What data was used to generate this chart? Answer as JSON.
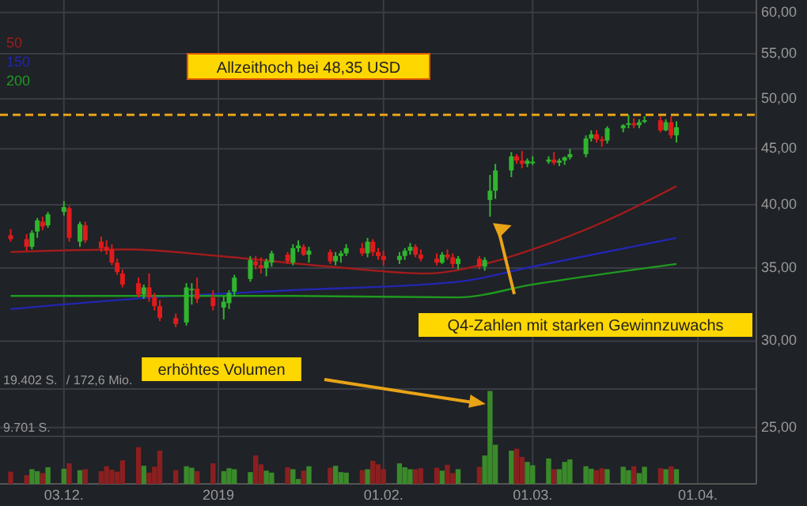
{
  "chart_data": {
    "type": "candlestick",
    "x": [
      "2018-11-23",
      "2018-11-26",
      "2018-11-27",
      "2018-11-28",
      "2018-11-29",
      "2018-11-30",
      "2018-12-03",
      "2018-12-04",
      "2018-12-06",
      "2018-12-07",
      "2018-12-10",
      "2018-12-11",
      "2018-12-12",
      "2018-12-13",
      "2018-12-14",
      "2018-12-17",
      "2018-12-18",
      "2018-12-19",
      "2018-12-20",
      "2018-12-21",
      "2018-12-24",
      "2018-12-26",
      "2018-12-27",
      "2018-12-28",
      "2018-12-31",
      "2019-01-02",
      "2019-01-03",
      "2019-01-04",
      "2019-01-07",
      "2019-01-08",
      "2019-01-09",
      "2019-01-10",
      "2019-01-11",
      "2019-01-14",
      "2019-01-15",
      "2019-01-16",
      "2019-01-17",
      "2019-01-18",
      "2019-01-22",
      "2019-01-23",
      "2019-01-24",
      "2019-01-25",
      "2019-01-28",
      "2019-01-29",
      "2019-01-30",
      "2019-01-31",
      "2019-02-01",
      "2019-02-04",
      "2019-02-05",
      "2019-02-06",
      "2019-02-07",
      "2019-02-08",
      "2019-02-11",
      "2019-02-12",
      "2019-02-13",
      "2019-02-14",
      "2019-02-15",
      "2019-02-19",
      "2019-02-20",
      "2019-02-21",
      "2019-02-22",
      "2019-02-25",
      "2019-02-26",
      "2019-02-27",
      "2019-02-28",
      "2019-03-01",
      "2019-03-04",
      "2019-03-05",
      "2019-03-06",
      "2019-03-07",
      "2019-03-08",
      "2019-03-11",
      "2019-03-12",
      "2019-03-13",
      "2019-03-14",
      "2019-03-15",
      "2019-03-18",
      "2019-03-19",
      "2019-03-20",
      "2019-03-21",
      "2019-03-22",
      "2019-03-25",
      "2019-03-26",
      "2019-03-27",
      "2019-03-28"
    ],
    "ohlc": [
      [
        37.5,
        38.0,
        37.0,
        37.2
      ],
      [
        37.2,
        37.6,
        36.3,
        36.6
      ],
      [
        36.6,
        37.9,
        36.4,
        37.7
      ],
      [
        37.8,
        38.9,
        37.3,
        38.7
      ],
      [
        38.6,
        39.0,
        37.9,
        38.2
      ],
      [
        38.3,
        39.4,
        38.1,
        39.2
      ],
      [
        39.4,
        40.3,
        39.1,
        39.8
      ],
      [
        39.7,
        39.9,
        37.0,
        37.3
      ],
      [
        37.0,
        38.6,
        36.6,
        38.4
      ],
      [
        38.3,
        38.6,
        36.9,
        37.1
      ],
      [
        37.0,
        37.4,
        36.2,
        36.5
      ],
      [
        36.6,
        37.1,
        36.0,
        36.3
      ],
      [
        36.4,
        36.8,
        35.2,
        35.4
      ],
      [
        35.4,
        35.7,
        34.5,
        34.7
      ],
      [
        34.6,
        34.9,
        33.6,
        33.8
      ],
      [
        33.9,
        34.3,
        32.9,
        33.1
      ],
      [
        33.1,
        33.8,
        32.8,
        33.6
      ],
      [
        33.6,
        34.6,
        32.6,
        32.9
      ],
      [
        32.9,
        33.2,
        32.0,
        32.3
      ],
      [
        32.3,
        32.7,
        31.3,
        31.5
      ],
      [
        31.5,
        31.8,
        30.9,
        31.1
      ],
      [
        31.2,
        33.9,
        31.0,
        33.6
      ],
      [
        33.4,
        33.9,
        32.4,
        33.5
      ],
      [
        33.5,
        34.3,
        32.5,
        32.8
      ],
      [
        32.9,
        33.4,
        32.0,
        32.3
      ],
      [
        32.2,
        33.0,
        31.4,
        32.6
      ],
      [
        32.5,
        33.4,
        32.1,
        33.2
      ],
      [
        33.3,
        34.5,
        33.0,
        34.3
      ],
      [
        34.2,
        35.9,
        34.0,
        35.6
      ],
      [
        35.5,
        35.9,
        34.9,
        35.2
      ],
      [
        35.2,
        35.8,
        34.6,
        35.0
      ],
      [
        35.0,
        35.7,
        34.4,
        35.5
      ],
      [
        35.4,
        36.3,
        35.1,
        36.1
      ],
      [
        36.0,
        36.2,
        35.3,
        35.5
      ],
      [
        35.4,
        36.8,
        35.2,
        36.5
      ],
      [
        36.5,
        37.1,
        36.2,
        36.7
      ],
      [
        36.6,
        36.8,
        35.9,
        36.0
      ],
      [
        36.0,
        36.6,
        35.4,
        36.3
      ],
      [
        36.2,
        36.4,
        35.3,
        35.5
      ],
      [
        35.5,
        36.2,
        35.2,
        35.9
      ],
      [
        35.9,
        36.3,
        35.4,
        36.1
      ],
      [
        36.1,
        36.8,
        35.9,
        36.5
      ],
      [
        36.5,
        36.9,
        35.9,
        36.1
      ],
      [
        36.1,
        37.3,
        35.8,
        37.0
      ],
      [
        37.0,
        37.2,
        35.9,
        36.2
      ],
      [
        36.2,
        36.5,
        35.6,
        35.9
      ],
      [
        35.9,
        36.3,
        35.2,
        35.6
      ],
      [
        35.6,
        36.2,
        35.3,
        35.9
      ],
      [
        35.9,
        36.5,
        35.6,
        36.3
      ],
      [
        36.3,
        36.9,
        36.0,
        36.6
      ],
      [
        36.6,
        36.8,
        35.8,
        36.0
      ],
      [
        36.0,
        36.4,
        35.5,
        35.7
      ],
      [
        35.7,
        36.1,
        35.2,
        35.4
      ],
      [
        35.4,
        36.2,
        35.3,
        36.0
      ],
      [
        36.0,
        36.4,
        35.6,
        35.8
      ],
      [
        35.8,
        36.1,
        35.0,
        35.3
      ],
      [
        35.3,
        35.9,
        34.9,
        35.7
      ],
      [
        35.7,
        35.9,
        34.9,
        35.1
      ],
      [
        35.1,
        35.8,
        34.8,
        35.6
      ],
      [
        40.4,
        42.6,
        39.0,
        41.2
      ],
      [
        41.2,
        43.6,
        40.5,
        43.0
      ],
      [
        43.0,
        44.7,
        42.4,
        44.3
      ],
      [
        44.3,
        44.5,
        43.6,
        43.9
      ],
      [
        43.9,
        44.8,
        43.2,
        43.6
      ],
      [
        43.6,
        44.1,
        43.3,
        43.9
      ],
      [
        43.8,
        44.3,
        43.5,
        43.8
      ],
      [
        43.8,
        44.3,
        43.6,
        44.0
      ],
      [
        44.0,
        44.7,
        43.5,
        43.7
      ],
      [
        43.7,
        44.1,
        43.4,
        43.9
      ],
      [
        43.9,
        44.3,
        43.5,
        44.2
      ],
      [
        44.2,
        45.0,
        44.0,
        44.5
      ],
      [
        44.5,
        46.3,
        44.2,
        46.0
      ],
      [
        46.0,
        46.8,
        45.7,
        46.4
      ],
      [
        46.4,
        46.8,
        45.6,
        45.9
      ],
      [
        45.9,
        46.2,
        45.2,
        45.8
      ],
      [
        45.8,
        47.2,
        45.5,
        47.0
      ],
      [
        47.0,
        47.4,
        46.6,
        47.3
      ],
      [
        47.4,
        48.35,
        47.0,
        47.5
      ],
      [
        47.5,
        48.0,
        47.0,
        47.3
      ],
      [
        47.3,
        47.9,
        47.0,
        47.6
      ],
      [
        47.7,
        48.2,
        47.5,
        47.8
      ],
      [
        47.8,
        48.2,
        46.6,
        46.8
      ],
      [
        46.8,
        47.9,
        46.7,
        47.6
      ],
      [
        47.6,
        48.2,
        46.0,
        46.3
      ],
      [
        46.3,
        47.7,
        45.6,
        47.1
      ]
    ],
    "series": [
      {
        "name": "50",
        "type": "line",
        "color": "#a01c1c",
        "x": [
          "2018-11-23",
          "2018-12-15",
          "2019-01-01",
          "2019-01-22",
          "2019-02-09",
          "2019-02-21",
          "2019-03-01",
          "2019-03-16",
          "2019-03-28"
        ],
        "values": [
          36.2,
          36.4,
          35.9,
          35.1,
          34.6,
          35.4,
          36.4,
          38.9,
          41.6
        ]
      },
      {
        "name": "150",
        "type": "line",
        "color": "#2326b0",
        "x": [
          "2018-11-23",
          "2018-12-20",
          "2019-01-15",
          "2019-02-15",
          "2019-03-01",
          "2019-03-28"
        ],
        "values": [
          32.1,
          32.9,
          33.4,
          34.0,
          35.1,
          37.3
        ]
      },
      {
        "name": "200",
        "type": "line",
        "color": "#1f9a1f",
        "x": [
          "2018-11-23",
          "2019-01-15",
          "2019-02-15",
          "2019-03-01",
          "2019-03-28"
        ],
        "values": [
          33.0,
          33.0,
          32.9,
          33.8,
          35.3
        ]
      },
      {
        "type": "bar",
        "axis": "y2",
        "values": [
          2500,
          1800,
          3000,
          2600,
          2200,
          3400,
          3100,
          4200,
          2800,
          3000,
          2600,
          3600,
          2900,
          2500,
          4800,
          7500,
          3700,
          2300,
          3500,
          6800,
          2800,
          3600,
          3300,
          2600,
          4200,
          2600,
          3200,
          3000,
          2400,
          5800,
          4000,
          2700,
          2300,
          3400,
          3000,
          1000,
          2700,
          3600,
          3300,
          3700,
          2400,
          2300,
          2800,
          3000,
          4700,
          4000,
          3000,
          4200,
          3400,
          3000,
          3000,
          3200,
          3300,
          2700,
          3900,
          2200,
          3000,
          3500,
          5800,
          19000,
          8000,
          6800,
          7200,
          5500,
          4500,
          3800,
          5200,
          3000,
          3000,
          4500,
          5000,
          3600,
          3100,
          2800,
          3200,
          3000,
          3500,
          2800,
          3600,
          2200,
          3500,
          3200,
          3000,
          3600,
          3000
        ],
        "colors": [
          "#8b1f1f",
          "#8b1f1f",
          "#3a8a2a",
          "#3a8a2a",
          "#8b1f1f",
          "#3a8a2a",
          "#3a8a2a",
          "#8b1f1f",
          "#3a8a2a",
          "#8b1f1f",
          "#8b1f1f",
          "#8b1f1f",
          "#8b1f1f",
          "#8b1f1f",
          "#8b1f1f",
          "#8b1f1f",
          "#3a8a2a",
          "#8b1f1f",
          "#8b1f1f",
          "#8b1f1f",
          "#8b1f1f",
          "#3a8a2a",
          "#3a8a2a",
          "#8b1f1f",
          "#8b1f1f",
          "#3a8a2a",
          "#3a8a2a",
          "#3a8a2a",
          "#3a8a2a",
          "#8b1f1f",
          "#8b1f1f",
          "#3a8a2a",
          "#3a8a2a",
          "#8b1f1f",
          "#3a8a2a",
          "#3a8a2a",
          "#8b1f1f",
          "#3a8a2a",
          "#8b1f1f",
          "#3a8a2a",
          "#3a8a2a",
          "#3a8a2a",
          "#8b1f1f",
          "#3a8a2a",
          "#8b1f1f",
          "#8b1f1f",
          "#8b1f1f",
          "#3a8a2a",
          "#3a8a2a",
          "#3a8a2a",
          "#8b1f1f",
          "#8b1f1f",
          "#8b1f1f",
          "#3a8a2a",
          "#8b1f1f",
          "#8b1f1f",
          "#3a8a2a",
          "#8b1f1f",
          "#3a8a2a",
          "#3a8a2a",
          "#3a8a2a",
          "#3a8a2a",
          "#8b1f1f",
          "#8b1f1f",
          "#3a8a2a",
          "#3a8a2a",
          "#3a8a2a",
          "#8b1f1f",
          "#3a8a2a",
          "#3a8a2a",
          "#3a8a2a",
          "#3a8a2a",
          "#3a8a2a",
          "#8b1f1f",
          "#8b1f1f",
          "#3a8a2a",
          "#3a8a2a",
          "#3a8a2a",
          "#8b1f1f",
          "#3a8a2a",
          "#3a8a2a",
          "#8b1f1f",
          "#3a8a2a",
          "#8b1f1f",
          "#3a8a2a"
        ]
      }
    ],
    "xlim": [
      "2018-11-21",
      "2019-04-12"
    ],
    "xticks": [
      {
        "value": "2018-12-03",
        "label": "03.12."
      },
      {
        "value": "2019-01-01",
        "label": "2019"
      },
      {
        "value": "2019-02-01",
        "label": "01.02."
      },
      {
        "value": "2019-03-01",
        "label": "01.03."
      },
      {
        "value": "2019-04-01",
        "label": "01.04."
      }
    ],
    "ylim": [
      22.2,
      61.6
    ],
    "log": "y",
    "yticks": [
      {
        "value": 25,
        "label": "25,00"
      },
      {
        "value": 30,
        "label": "30,00"
      },
      {
        "value": 35,
        "label": "35,00"
      },
      {
        "value": 40,
        "label": "40,00"
      },
      {
        "value": 45,
        "label": "45,00"
      },
      {
        "value": 50,
        "label": "50,00"
      },
      {
        "value": 55,
        "label": "55,00"
      },
      {
        "value": 60,
        "label": "60,00"
      }
    ],
    "y2lim": [
      0,
      99000
    ],
    "y2ticks": [
      {
        "value": 9701,
        "label": "9.701 S."
      },
      {
        "value": 19402,
        "label": "19.402 S."
      }
    ],
    "grid": true,
    "legend": "top left",
    "ref_lines": [
      {
        "axis": "y",
        "value": 48.35,
        "label": "Allzeithoch bei 48,35 USD",
        "color": "#e8a317",
        "line_style": "dashed"
      }
    ],
    "annotations": [
      "Q4-Zahlen mit starken Gewinnzuwachs",
      "erhöhtes Volumen",
      "/ 172,6 Mio."
    ]
  }
}
